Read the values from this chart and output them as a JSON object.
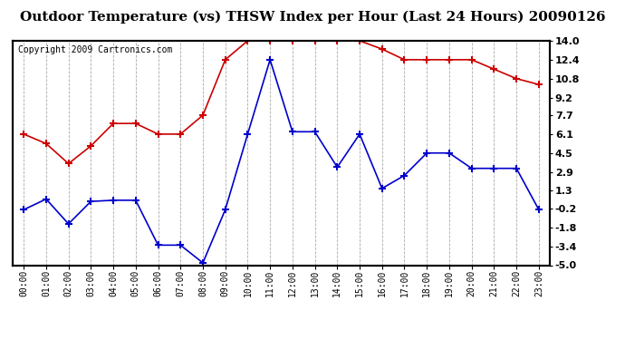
{
  "title": "Outdoor Temperature (vs) THSW Index per Hour (Last 24 Hours) 20090126",
  "copyright": "Copyright 2009 Cartronics.com",
  "hours": [
    "00:00",
    "01:00",
    "02:00",
    "03:00",
    "04:00",
    "05:00",
    "06:00",
    "07:00",
    "08:00",
    "09:00",
    "10:00",
    "11:00",
    "12:00",
    "13:00",
    "14:00",
    "15:00",
    "16:00",
    "17:00",
    "18:00",
    "19:00",
    "20:00",
    "21:00",
    "22:00",
    "23:00"
  ],
  "red_data": [
    6.1,
    5.3,
    3.6,
    5.1,
    7.0,
    7.0,
    6.1,
    6.1,
    7.7,
    12.4,
    14.0,
    14.0,
    14.0,
    14.0,
    14.0,
    14.0,
    13.3,
    12.4,
    12.4,
    12.4,
    12.4,
    11.6,
    10.8,
    10.3
  ],
  "blue_data": [
    -0.3,
    0.6,
    -1.5,
    0.4,
    0.5,
    0.5,
    -3.3,
    -3.3,
    -4.8,
    -0.3,
    6.1,
    12.4,
    6.3,
    6.3,
    3.3,
    6.1,
    1.5,
    2.6,
    4.5,
    4.5,
    3.2,
    3.2,
    3.2,
    -0.3
  ],
  "y_min": -5.0,
  "y_max": 14.0,
  "y_right_ticks": [
    -5.0,
    -3.4,
    -1.8,
    -0.2,
    1.3,
    2.9,
    4.5,
    6.1,
    7.7,
    9.2,
    10.8,
    12.4,
    14.0
  ],
  "red_color": "#cc0000",
  "blue_color": "#0000cc",
  "grid_color": "#aaaaaa",
  "bg_color": "#ffffff",
  "title_fontsize": 11,
  "copyright_fontsize": 7
}
